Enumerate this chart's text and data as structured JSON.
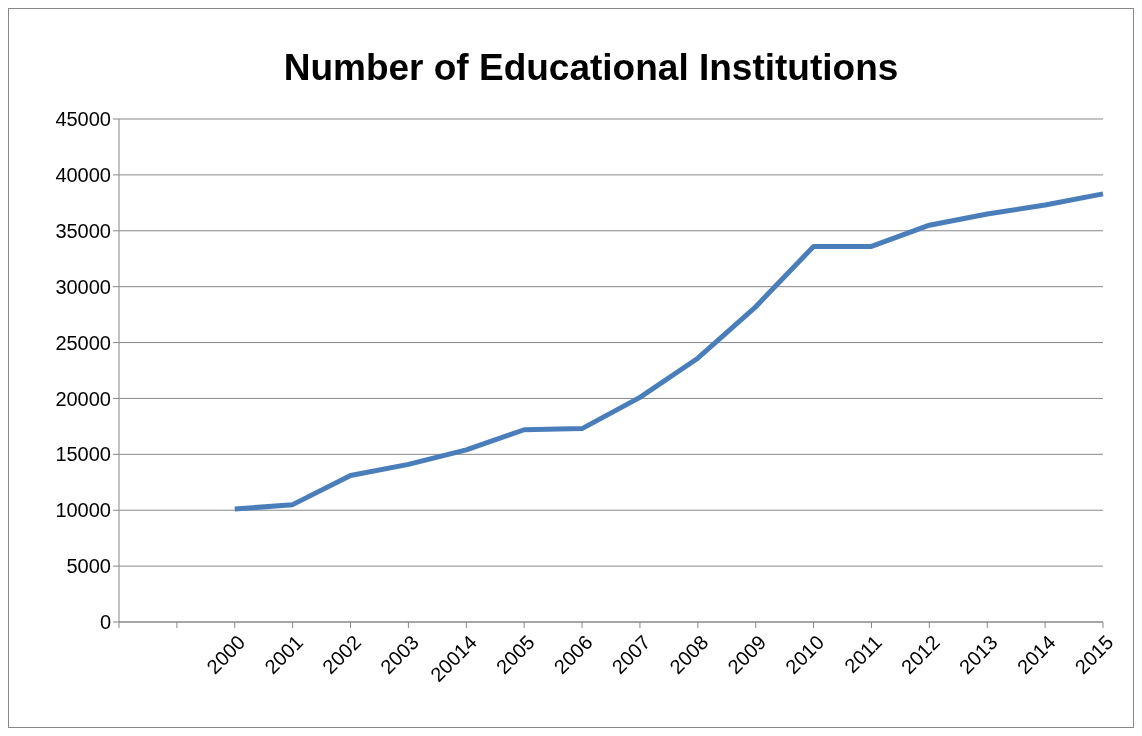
{
  "chart_data": {
    "type": "line",
    "title": "Number of Educational Institutions",
    "categories": [
      null,
      null,
      "2000",
      "2001",
      "2002",
      "2003",
      "20014",
      "2005",
      "2006",
      "2007",
      "2008",
      "2009",
      "2010",
      "2011",
      "2012",
      "2013",
      "2014",
      "2015"
    ],
    "series": [
      {
        "color": "#4a7ebb",
        "values": [
          null,
          null,
          10100,
          10500,
          13100,
          14100,
          15400,
          17200,
          17300,
          20100,
          23600,
          28200,
          33600,
          33600,
          35500,
          36500,
          37300,
          38300
        ]
      }
    ],
    "ylim": [
      0,
      45000
    ],
    "yticks": [
      0,
      5000,
      10000,
      15000,
      20000,
      25000,
      30000,
      35000,
      40000,
      45000
    ],
    "grid": "y",
    "legend": false,
    "marker": "none",
    "line_style": "solid"
  }
}
